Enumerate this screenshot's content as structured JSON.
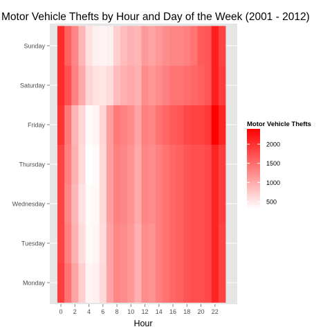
{
  "chart_data": {
    "type": "heatmap",
    "title": "Motor Vehicle Thefts by Hour and Day of the Week (2001 - 2012)",
    "xlabel": "Hour",
    "ylabel": "",
    "x": [
      0,
      1,
      2,
      3,
      4,
      5,
      6,
      7,
      8,
      9,
      10,
      11,
      12,
      13,
      14,
      15,
      16,
      17,
      18,
      19,
      20,
      21,
      22,
      23
    ],
    "x_ticks": [
      "0",
      "2",
      "4",
      "6",
      "8",
      "10",
      "12",
      "14",
      "16",
      "18",
      "20",
      "22"
    ],
    "y": [
      "Monday",
      "Tuesday",
      "Wednesday",
      "Thursday",
      "Friday",
      "Saturday",
      "Sunday"
    ],
    "values": [
      [
        1900,
        1450,
        1050,
        700,
        400,
        420,
        620,
        1050,
        1300,
        1250,
        1150,
        950,
        1250,
        1200,
        1350,
        1450,
        1550,
        1600,
        1700,
        1750,
        1750,
        1800,
        2100,
        1850
      ],
      [
        1850,
        1350,
        950,
        600,
        350,
        380,
        600,
        1050,
        1300,
        1250,
        1150,
        950,
        1250,
        1200,
        1350,
        1450,
        1550,
        1600,
        1700,
        1750,
        1750,
        1800,
        2100,
        1850
      ],
      [
        1850,
        1300,
        900,
        550,
        330,
        360,
        620,
        1100,
        1350,
        1300,
        1200,
        1000,
        1300,
        1250,
        1350,
        1450,
        1550,
        1600,
        1700,
        1750,
        1750,
        1800,
        2100,
        1900
      ],
      [
        1850,
        1350,
        950,
        600,
        300,
        350,
        620,
        1100,
        1350,
        1300,
        1200,
        1000,
        1300,
        1250,
        1350,
        1450,
        1550,
        1600,
        1700,
        1750,
        1750,
        1800,
        2100,
        1900
      ],
      [
        2000,
        1400,
        900,
        650,
        350,
        400,
        650,
        1100,
        1400,
        1350,
        1250,
        1050,
        1350,
        1300,
        1450,
        1550,
        1650,
        1700,
        1800,
        1850,
        1850,
        1950,
        2400,
        2100
      ],
      [
        2050,
        1750,
        1350,
        1000,
        650,
        550,
        500,
        600,
        850,
        950,
        1000,
        950,
        1250,
        1150,
        1250,
        1350,
        1450,
        1450,
        1500,
        1550,
        1600,
        1700,
        2150,
        1900
      ],
      [
        2050,
        1600,
        1300,
        900,
        550,
        420,
        400,
        420,
        700,
        850,
        950,
        900,
        1150,
        1050,
        1150,
        1250,
        1300,
        1300,
        1350,
        1450,
        1650,
        1700,
        2150,
        1850
      ]
    ],
    "legend": {
      "title": "Motor Vehicle Thefts",
      "ticks": [
        500,
        1000,
        1500,
        2000
      ],
      "min": 300,
      "max": 2400,
      "low_color": "#ffffff",
      "high_color": "#ff0000",
      "position": "right"
    },
    "panel_background": "#e5e5e5",
    "grid": true
  }
}
